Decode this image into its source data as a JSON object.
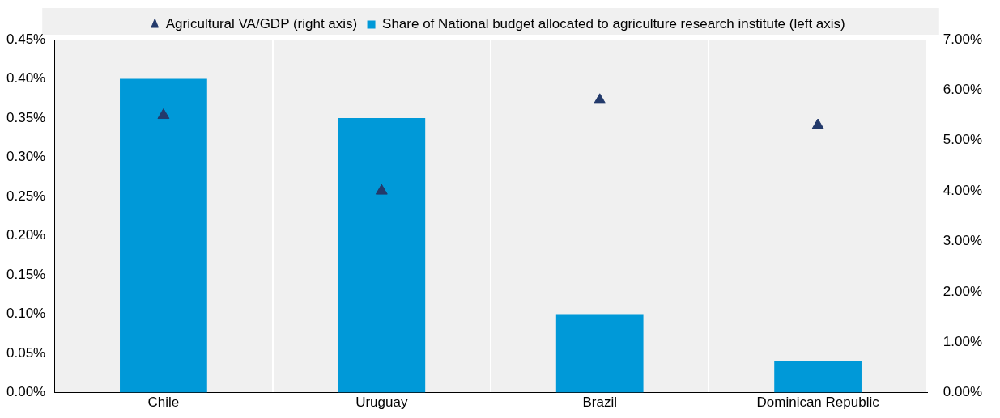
{
  "chart_data": {
    "type": "bar",
    "categories": [
      "Chile",
      "Uruguay",
      "Brazil",
      "Dominican Republic"
    ],
    "series": [
      {
        "name": "Share of National budget allocated to agriculture research institute (left axis)",
        "color": "#0099d8",
        "values": [
          0.4,
          0.35,
          0.1,
          0.04
        ]
      },
      {
        "name": "Agricultural VA/GDP (right axis)",
        "type": "scatter",
        "axis": "y2",
        "color": "#233a6b",
        "values": [
          5.5,
          4.0,
          5.8,
          5.3
        ]
      }
    ],
    "ylim": [
      0,
      0.45
    ],
    "yticks": [
      {
        "value": 0,
        "label": "0.00%"
      },
      {
        "value": 0.05,
        "label": "0.05%"
      },
      {
        "value": 0.1,
        "label": "0.10%"
      },
      {
        "value": 0.15,
        "label": "0.15%"
      },
      {
        "value": 0.2,
        "label": "0.20%"
      },
      {
        "value": 0.25,
        "label": "0.25%"
      },
      {
        "value": 0.3,
        "label": "0.30%"
      },
      {
        "value": 0.35,
        "label": "0.35%"
      },
      {
        "value": 0.4,
        "label": "0.40%"
      },
      {
        "value": 0.45,
        "label": "0.45%"
      }
    ],
    "y2lim": [
      0,
      7
    ],
    "y2ticks": [
      {
        "value": 0,
        "label": "0.00%"
      },
      {
        "value": 1,
        "label": "1.00%"
      },
      {
        "value": 2,
        "label": "2.00%"
      },
      {
        "value": 3,
        "label": "3.00%"
      },
      {
        "value": 4,
        "label": "4.00%"
      },
      {
        "value": 5,
        "label": "5.00%"
      },
      {
        "value": 6,
        "label": "6.00%"
      },
      {
        "value": 7,
        "label": "7.00%"
      }
    ],
    "grid": "x",
    "legend": "top",
    "marker": "triangle"
  }
}
